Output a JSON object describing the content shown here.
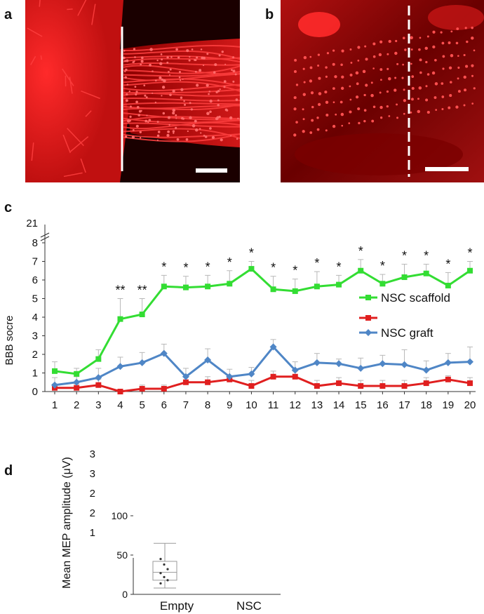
{
  "panels": {
    "a": {
      "letter": "a",
      "scale_bar": true,
      "boundary_line": "solid"
    },
    "b": {
      "letter": "b",
      "scale_bar": true,
      "boundary_line": "dashed"
    },
    "c": {
      "letter": "c"
    },
    "d": {
      "letter": "d"
    }
  },
  "colors": {
    "fluorescence": "#ff1a1a",
    "background_dark": "#1a0000",
    "green_series": "#33dd33",
    "red_series": "#e01f1f",
    "blue_series": "#4f86c6",
    "error_bar": "#bbbbbb"
  },
  "chart_data": [
    {
      "id": "c",
      "type": "line",
      "ylabel": "BBB socre",
      "xlabel": "",
      "ylim": [
        0,
        8
      ],
      "y_broken_top_label": "21",
      "y_ticks": [
        "0",
        "1",
        "2",
        "3",
        "4",
        "5",
        "6",
        "7",
        "8"
      ],
      "x": [
        "1",
        "2",
        "3",
        "4",
        "5",
        "6",
        "7",
        "8",
        "9",
        "10",
        "11",
        "12",
        "13",
        "14",
        "15",
        "16",
        "17",
        "18",
        "19",
        "20"
      ],
      "x_tick_labels": [
        "1",
        "2",
        "3",
        "4",
        "5",
        "6",
        "7",
        "8",
        "9",
        "10",
        "11",
        "12",
        "13",
        "14",
        "15",
        "16",
        "17",
        "18",
        "19",
        "20"
      ],
      "grid": false,
      "legend_position": "right",
      "series": [
        {
          "name": "NSC scaffold",
          "color": "#33dd33",
          "values": [
            1.1,
            0.95,
            1.75,
            3.9,
            4.15,
            5.65,
            5.6,
            5.65,
            5.8,
            6.6,
            5.5,
            5.4,
            5.65,
            5.75,
            6.5,
            5.8,
            6.15,
            6.35,
            5.7,
            6.5
          ],
          "errors": [
            0.5,
            0.3,
            0.5,
            1.1,
            0.85,
            0.6,
            0.6,
            0.6,
            0.7,
            0.4,
            0.7,
            0.65,
            0.8,
            0.5,
            0.6,
            0.5,
            0.7,
            0.5,
            0.7,
            0.5
          ]
        },
        {
          "name": "",
          "color": "#e01f1f",
          "values": [
            0.2,
            0.2,
            0.35,
            0.0,
            0.15,
            0.15,
            0.5,
            0.5,
            0.65,
            0.3,
            0.8,
            0.8,
            0.3,
            0.45,
            0.3,
            0.3,
            0.3,
            0.45,
            0.65,
            0.45
          ],
          "errors": [
            0.2,
            0.2,
            0.3,
            0.1,
            0.2,
            0.2,
            0.3,
            0.3,
            0.2,
            0.3,
            0.3,
            0.3,
            0.3,
            0.3,
            0.3,
            0.3,
            0.3,
            0.3,
            0.2,
            0.3
          ]
        },
        {
          "name": "NSC graft",
          "color": "#4f86c6",
          "values": [
            0.35,
            0.5,
            0.75,
            1.35,
            1.55,
            2.05,
            0.8,
            1.7,
            0.8,
            0.95,
            2.4,
            1.15,
            1.55,
            1.5,
            1.25,
            1.5,
            1.45,
            1.15,
            1.55,
            1.6
          ],
          "errors": [
            0.4,
            0.3,
            0.5,
            0.5,
            0.55,
            0.5,
            0.45,
            0.6,
            0.4,
            0.35,
            0.4,
            0.45,
            0.5,
            0.25,
            0.55,
            0.45,
            0.8,
            0.5,
            0.5,
            0.8
          ]
        }
      ],
      "annotations": [
        "",
        "",
        "",
        "**",
        "**",
        "*",
        "*",
        "*",
        "*",
        "*",
        "*",
        "*",
        "*",
        "*",
        "*",
        "*",
        "*",
        "*",
        "*",
        "*"
      ]
    },
    {
      "id": "d",
      "type": "box",
      "ylabel": "Mean MEP amplitude (μV)",
      "categories": [
        "Empty",
        "NSC"
      ],
      "y_ticks": [
        "0",
        "50",
        "100"
      ],
      "y_upper_ticks": [
        "3",
        "3",
        "2",
        "2",
        "1"
      ],
      "ylim_visible": [
        0,
        100
      ],
      "boxes": [
        {
          "category": "Empty",
          "min": 8,
          "q1": 18,
          "median": 28,
          "q3": 42,
          "max": 65,
          "points": [
            45,
            38,
            32,
            27,
            22,
            18,
            14
          ]
        }
      ]
    }
  ]
}
